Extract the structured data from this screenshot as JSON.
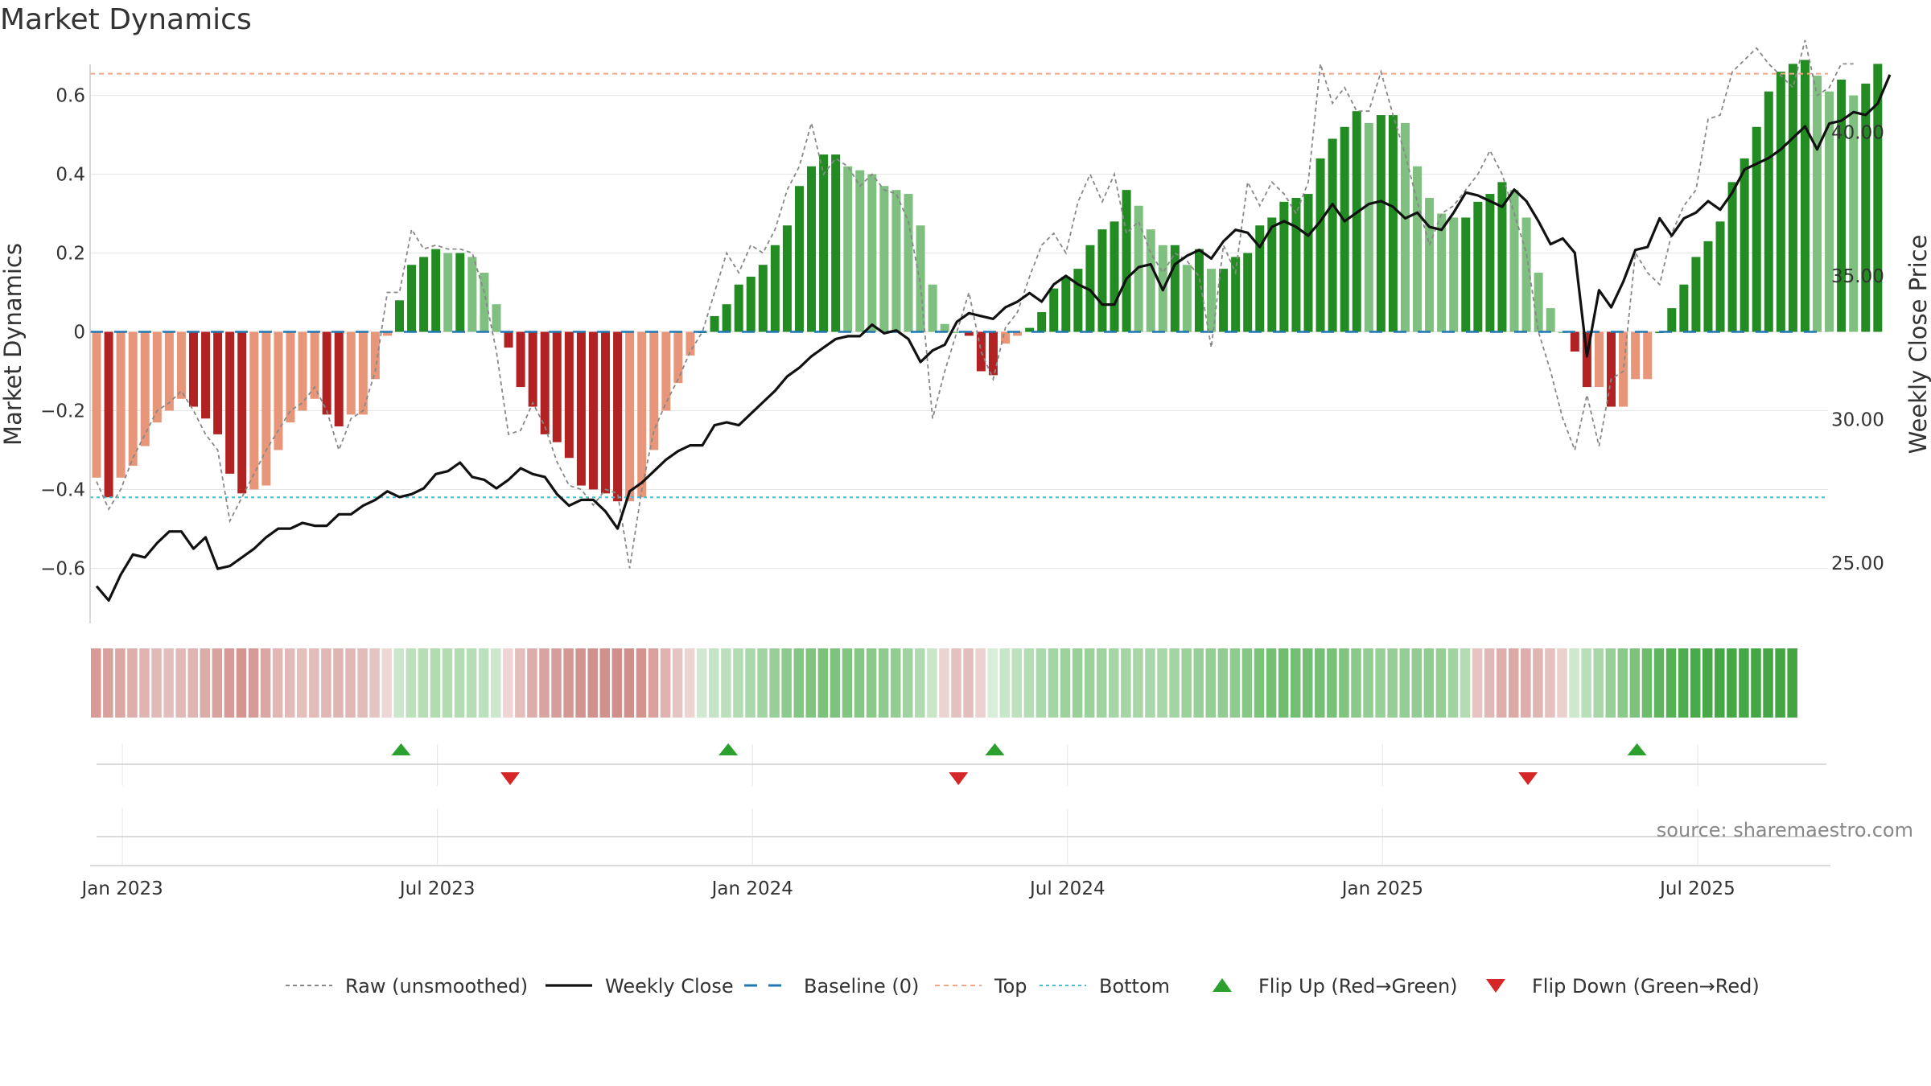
{
  "chart_data": {
    "type": "bar",
    "title": "Market Dynamics",
    "ylabel_left": "Market Dynamics",
    "ylabel_right": "Weekly Close Price",
    "ylim_left": [
      -0.74,
      0.74
    ],
    "ylim_right": [
      22.9,
      43.2
    ],
    "left_ticks": [
      {
        "v": 0.6,
        "label": "0.6"
      },
      {
        "v": 0.4,
        "label": "0.4"
      },
      {
        "v": 0.2,
        "label": "0.2"
      },
      {
        "v": 0.0,
        "label": "0"
      },
      {
        "v": -0.2,
        "label": "−0.2"
      },
      {
        "v": -0.4,
        "label": "−0.4"
      },
      {
        "v": -0.6,
        "label": "−0.6"
      }
    ],
    "right_ticks": [
      {
        "v": 40,
        "label": "40.00"
      },
      {
        "v": 35,
        "label": "35.00"
      },
      {
        "v": 30,
        "label": "30.00"
      },
      {
        "v": 25,
        "label": "25.00"
      }
    ],
    "x_ticks": [
      {
        "i": 2,
        "label": "Jan 2023"
      },
      {
        "i": 28,
        "label": "Jul 2023"
      },
      {
        "i": 54,
        "label": "Jan 2024"
      },
      {
        "i": 80,
        "label": "Jul 2024"
      },
      {
        "i": 106,
        "label": "Jan 2025"
      },
      {
        "i": 132,
        "label": "Jul 2025"
      }
    ],
    "top_level": 0.655,
    "bottom_level": -0.42,
    "values": [
      -0.37,
      -0.42,
      -0.37,
      -0.34,
      -0.29,
      -0.23,
      -0.2,
      -0.17,
      -0.19,
      -0.22,
      -0.26,
      -0.36,
      -0.41,
      -0.4,
      -0.39,
      -0.3,
      -0.23,
      -0.2,
      -0.17,
      -0.21,
      -0.24,
      -0.21,
      -0.21,
      -0.12,
      -0.01,
      0.08,
      0.17,
      0.19,
      0.21,
      0.2,
      0.2,
      0.19,
      0.15,
      0.07,
      -0.04,
      -0.14,
      -0.19,
      -0.26,
      -0.28,
      -0.32,
      -0.39,
      -0.4,
      -0.41,
      -0.43,
      -0.43,
      -0.42,
      -0.3,
      -0.2,
      -0.13,
      -0.06,
      0.0,
      0.04,
      0.07,
      0.12,
      0.14,
      0.17,
      0.22,
      0.27,
      0.37,
      0.42,
      0.45,
      0.45,
      0.42,
      0.41,
      0.4,
      0.37,
      0.36,
      0.35,
      0.27,
      0.12,
      0.02,
      0.0,
      -0.01,
      -0.1,
      -0.11,
      -0.03,
      -0.01,
      0.01,
      0.05,
      0.11,
      0.14,
      0.16,
      0.22,
      0.26,
      0.28,
      0.36,
      0.32,
      0.26,
      0.22,
      0.22,
      0.17,
      0.21,
      0.16,
      0.16,
      0.19,
      0.2,
      0.27,
      0.29,
      0.33,
      0.34,
      0.35,
      0.44,
      0.49,
      0.52,
      0.56,
      0.53,
      0.55,
      0.55,
      0.53,
      0.42,
      0.34,
      0.3,
      0.29,
      0.29,
      0.33,
      0.35,
      0.38,
      0.36,
      0.29,
      0.15,
      0.06,
      0.0,
      -0.05,
      -0.14,
      -0.14,
      -0.19,
      -0.19,
      -0.12,
      -0.12,
      0.0,
      0.06,
      0.12,
      0.19,
      0.23,
      0.28,
      0.38,
      0.44,
      0.52,
      0.61,
      0.66,
      0.68,
      0.69,
      0.65,
      0.61,
      0.64,
      0.6,
      0.63,
      0.68
    ],
    "raw_values": [
      -0.38,
      -0.45,
      -0.4,
      -0.32,
      -0.26,
      -0.2,
      -0.18,
      -0.15,
      -0.2,
      -0.26,
      -0.3,
      -0.48,
      -0.42,
      -0.36,
      -0.3,
      -0.25,
      -0.2,
      -0.18,
      -0.14,
      -0.2,
      -0.3,
      -0.22,
      -0.2,
      -0.1,
      0.1,
      0.1,
      0.26,
      0.21,
      0.22,
      0.21,
      0.21,
      0.2,
      0.1,
      -0.05,
      -0.26,
      -0.25,
      -0.18,
      -0.24,
      -0.33,
      -0.39,
      -0.4,
      -0.44,
      -0.4,
      -0.41,
      -0.6,
      -0.4,
      -0.25,
      -0.18,
      -0.12,
      -0.05,
      0.0,
      0.1,
      0.2,
      0.15,
      0.22,
      0.2,
      0.26,
      0.36,
      0.42,
      0.53,
      0.4,
      0.44,
      0.42,
      0.37,
      0.4,
      0.36,
      0.35,
      0.28,
      0.12,
      -0.22,
      -0.1,
      0.0,
      0.1,
      -0.05,
      -0.12,
      0.01,
      0.05,
      0.14,
      0.22,
      0.25,
      0.2,
      0.33,
      0.4,
      0.33,
      0.4,
      0.25,
      0.28,
      0.2,
      0.15,
      0.2,
      0.18,
      0.14,
      -0.04,
      0.22,
      0.15,
      0.38,
      0.32,
      0.38,
      0.35,
      0.3,
      0.38,
      0.68,
      0.58,
      0.62,
      0.56,
      0.56,
      0.66,
      0.55,
      0.45,
      0.33,
      0.22,
      0.3,
      0.32,
      0.36,
      0.4,
      0.46,
      0.4,
      0.3,
      0.2,
      0.0,
      -0.1,
      -0.22,
      -0.3,
      -0.16,
      -0.29,
      -0.12,
      -0.1,
      0.2,
      0.15,
      0.12,
      0.25,
      0.32,
      0.36,
      0.54,
      0.55,
      0.66,
      0.69,
      0.72,
      0.68,
      0.65,
      0.62,
      0.74,
      0.6,
      0.62,
      0.68,
      0.68
    ],
    "price": [
      24.2,
      23.7,
      24.6,
      25.3,
      25.2,
      25.7,
      26.1,
      26.1,
      25.5,
      25.9,
      24.8,
      24.9,
      25.2,
      25.5,
      25.9,
      26.2,
      26.2,
      26.4,
      26.3,
      26.3,
      26.7,
      26.7,
      27.0,
      27.2,
      27.5,
      27.3,
      27.4,
      27.6,
      28.1,
      28.2,
      28.5,
      28.0,
      27.9,
      27.6,
      27.9,
      28.3,
      28.1,
      28.0,
      27.4,
      27.0,
      27.2,
      27.2,
      26.8,
      26.2,
      27.5,
      27.8,
      28.2,
      28.6,
      28.9,
      29.1,
      29.1,
      29.8,
      29.9,
      29.8,
      30.2,
      30.6,
      31.0,
      31.5,
      31.8,
      32.2,
      32.5,
      32.8,
      32.9,
      32.9,
      33.3,
      33.0,
      33.1,
      32.8,
      32.0,
      32.4,
      32.6,
      33.4,
      33.7,
      33.6,
      33.5,
      33.9,
      34.1,
      34.4,
      34.1,
      34.7,
      35.0,
      34.7,
      34.5,
      34.0,
      34.0,
      34.9,
      35.3,
      35.4,
      34.5,
      35.4,
      35.7,
      35.9,
      35.6,
      36.2,
      36.6,
      36.5,
      36.0,
      36.7,
      36.9,
      36.7,
      36.4,
      36.9,
      37.5,
      36.9,
      37.2,
      37.5,
      37.6,
      37.4,
      37.0,
      37.2,
      36.7,
      36.6,
      37.2,
      37.9,
      37.8,
      37.6,
      37.4,
      38.0,
      37.6,
      36.9,
      36.1,
      36.3,
      35.8,
      32.2,
      34.5,
      33.9,
      34.8,
      35.9,
      36.0,
      37.0,
      36.4,
      37.0,
      37.2,
      37.6,
      37.3,
      37.9,
      38.7,
      38.9,
      39.1,
      39.4,
      39.8,
      40.2,
      39.4,
      40.3,
      40.4,
      40.7,
      40.6,
      41.0,
      42.0
    ],
    "heat_colors": [
      "#d79a97",
      "#d9a19e",
      "#dba7a4",
      "#ddaeab",
      "#dfb4b1",
      "#e1b9b6",
      "#e3bebc",
      "#e1bab7",
      "#dfb4b1",
      "#dcaca9",
      "#d8a29f",
      "#d69b98",
      "#d4958f",
      "#d69a97",
      "#dba6a3",
      "#e1b6b3",
      "#e2bbb8",
      "#e4c0bd",
      "#e2bcb9",
      "#e0b7b4",
      "#dfb5b2",
      "#e0b7b4",
      "#e2bcb9",
      "#e6c4c2",
      "#eed8d6",
      "#cbe7cb",
      "#bde0bd",
      "#b6ddb6",
      "#b1dbb1",
      "#b3dcb3",
      "#b3dcb3",
      "#b6ddb6",
      "#bde0bd",
      "#cde7cd",
      "#efd6d4",
      "#e3bebb",
      "#dcaeab",
      "#d8a4a1",
      "#d69e9b",
      "#d49894",
      "#d29490",
      "#d0918d",
      "#d0908c",
      "#d08f8b",
      "#d18f8c",
      "#d3938f",
      "#d9a09d",
      "#e0b3b0",
      "#e6c4c2",
      "#edd4d2",
      "#d0e9d0",
      "#c5e4c5",
      "#bce0bc",
      "#b3dcb3",
      "#aad8aa",
      "#a2d4a2",
      "#98cf98",
      "#8dca8d",
      "#84c684",
      "#7fc47f",
      "#7bc27b",
      "#7dc37d",
      "#82c582",
      "#86c786",
      "#8bc98b",
      "#8fcb8f",
      "#94cd94",
      "#9ed29e",
      "#b0dab0",
      "#c9e6c9",
      "#ebd3d1",
      "#e3c1bf",
      "#e2bfbd",
      "#ecd1cf",
      "#d8eed8",
      "#c8e6c8",
      "#bde1bd",
      "#b5ddb5",
      "#acd9ac",
      "#a4d5a4",
      "#9dd29d",
      "#98d098",
      "#9bd19b",
      "#a1d3a1",
      "#a6d6a6",
      "#a5d5a5",
      "#a7d6a7",
      "#a9d7a9",
      "#a8d6a8",
      "#a3d4a3",
      "#9cd19c",
      "#98cf98",
      "#95ce95",
      "#92cc92",
      "#8fcb8f",
      "#86c786",
      "#7bc27b",
      "#74bf74",
      "#70bd70",
      "#72be72",
      "#74bf74",
      "#76c076",
      "#78c178",
      "#80c480",
      "#8bc98b",
      "#94cd94",
      "#98cf98",
      "#97ce97",
      "#95ce95",
      "#92cc92",
      "#91cc91",
      "#95cd95",
      "#a0d3a0",
      "#b3dcb3",
      "#e6c4c2",
      "#e0b8b5",
      "#ddafac",
      "#dba9a6",
      "#ddaeab",
      "#e0b6b3",
      "#e4c1be",
      "#ebd0ce",
      "#cde8cd",
      "#b9dfb9",
      "#a8d6a8",
      "#98cf98",
      "#8bc98b",
      "#7cc27c",
      "#6dbb6d",
      "#5fb45f",
      "#56b056",
      "#4fac4f",
      "#4aaa4a",
      "#47a847",
      "#46a746",
      "#45a745",
      "#45a745",
      "#44a644",
      "#44a644",
      "#43a643",
      "#42a542"
    ],
    "flip_up_idx": [
      25,
      52,
      74,
      127
    ],
    "flip_down_idx": [
      34,
      71,
      118
    ],
    "legend": [
      {
        "key": "raw",
        "label": "Raw (unsmoothed)"
      },
      {
        "key": "close",
        "label": "Weekly Close"
      },
      {
        "key": "baseline",
        "label": "Baseline (0)"
      },
      {
        "key": "top",
        "label": "Top"
      },
      {
        "key": "bottom",
        "label": "Bottom"
      },
      {
        "key": "flip_up",
        "label": "Flip Up (Red→Green)"
      },
      {
        "key": "flip_down",
        "label": "Flip Down (Green→Red)"
      }
    ],
    "source": "source: sharemaestro.com",
    "colors": {
      "dark_green": "#228b22",
      "light_green": "#7fbf7f",
      "dark_red": "#b22222",
      "light_red": "#e8967a",
      "price_line": "#111111",
      "raw_line": "#888888",
      "baseline": "#1f77b4",
      "top": "#f4a582",
      "bottom": "#40c0d0",
      "flip_up": "#2ca02c",
      "flip_down": "#d62728"
    }
  }
}
